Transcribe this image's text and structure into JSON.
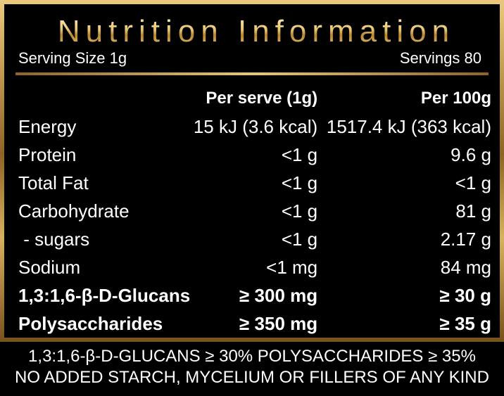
{
  "title": "Nutrition Information",
  "serving_size": "Serving Size 1g",
  "servings": "Servings 80",
  "headers": {
    "nutrient": "",
    "per_serve": "Per serve (1g)",
    "per_100g": "Per 100g"
  },
  "rows": [
    {
      "name": "Energy",
      "per_serve": "15 kJ (3.6 kcal)",
      "per_100g": "1517.4 kJ (363 kcal)"
    },
    {
      "name": "Protein",
      "per_serve": "<1 g",
      "per_100g": "9.6 g"
    },
    {
      "name": "Total Fat",
      "per_serve": "<1 g",
      "per_100g": "<1 g"
    },
    {
      "name": "Carbohydrate",
      "per_serve": "<1 g",
      "per_100g": "81 g"
    },
    {
      "name": " - sugars",
      "per_serve": "<1 g",
      "per_100g": "2.17 g"
    },
    {
      "name": "Sodium",
      "per_serve": "<1 mg",
      "per_100g": "84 mg"
    },
    {
      "name": "1,3:1,6-β-D-Glucans",
      "per_serve": "≥ 300 mg",
      "per_100g": "≥ 30 g"
    },
    {
      "name": "Polysaccharides",
      "per_serve": "≥ 350 mg",
      "per_100g": "≥ 35 g"
    }
  ],
  "footer": {
    "line1": "1,3:1,6-β-D-GLUCANS ≥ 30% POLYSACCHARIDES ≥ 35%",
    "line2": "NO ADDED STARCH, MYCELIUM OR FILLERS OF ANY KIND"
  },
  "colors": {
    "background": "#000000",
    "text": "#ffffff",
    "accent_gold": "#d4a54c"
  }
}
